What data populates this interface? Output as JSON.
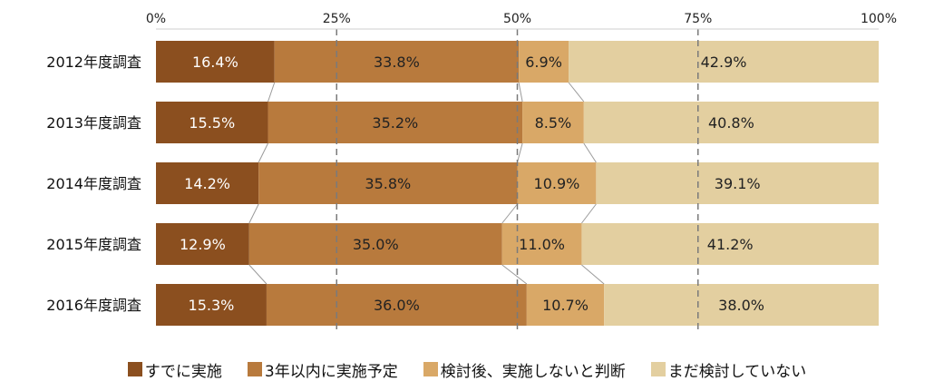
{
  "chart_data": {
    "type": "bar",
    "orientation": "horizontal",
    "stacked": true,
    "categories": [
      "2012年度調査",
      "2013年度調査",
      "2014年度調査",
      "2015年度調査",
      "2016年度調査"
    ],
    "series": [
      {
        "name": "すでに実施",
        "color": "#8B4F1F",
        "values": [
          16.4,
          15.5,
          14.2,
          12.9,
          15.3
        ]
      },
      {
        "name": "3年以内に実施予定",
        "color": "#B87A3D",
        "values": [
          33.8,
          35.2,
          35.8,
          35.0,
          36.0
        ]
      },
      {
        "name": "検討後、実施しないと判断",
        "color": "#D9A867",
        "values": [
          6.9,
          8.5,
          10.9,
          11.0,
          10.7
        ]
      },
      {
        "name": "まだ検討していない",
        "color": "#E3CFA0",
        "values": [
          42.9,
          40.8,
          39.1,
          41.2,
          38.0
        ]
      }
    ],
    "value_labels": [
      [
        "16.4%",
        "33.8%",
        "6.9%",
        "42.9%"
      ],
      [
        "15.5%",
        "35.2%",
        "8.5%",
        "40.8%"
      ],
      [
        "14.2%",
        "35.8%",
        "10.9%",
        "39.1%"
      ],
      [
        "12.9%",
        "35.0%",
        "11.0%",
        "41.2%"
      ],
      [
        "15.3%",
        "36.0%",
        "10.7%",
        "38.0%"
      ]
    ],
    "x_ticks": [
      0,
      25,
      50,
      75,
      100
    ],
    "x_tick_labels": [
      "0%",
      "25%",
      "50%",
      "75%",
      "100%"
    ],
    "xlim": [
      0,
      100
    ],
    "grid": true,
    "legend_position": "bottom"
  }
}
